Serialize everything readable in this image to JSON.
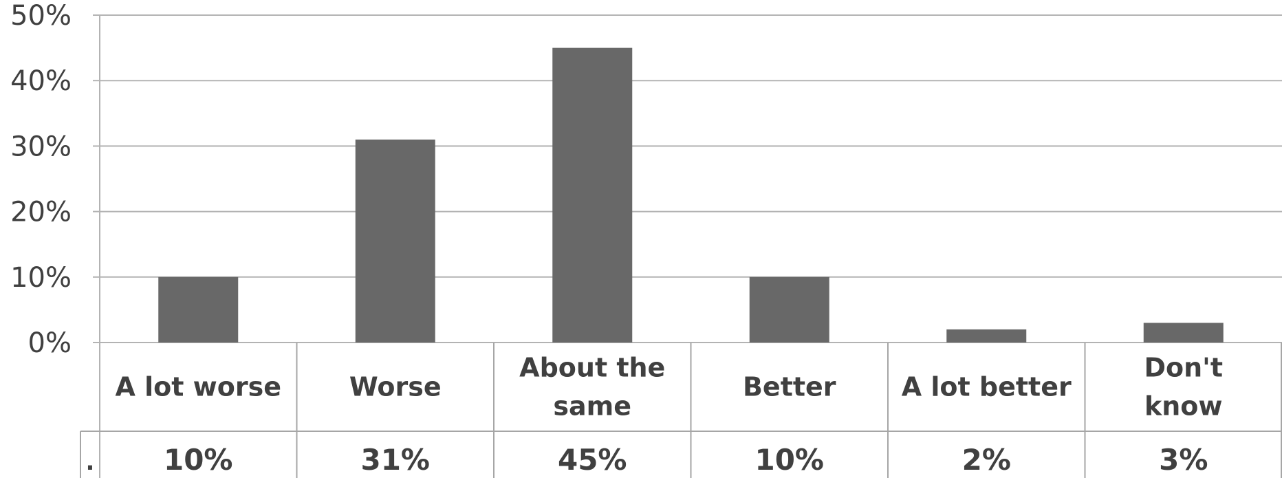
{
  "chart_data": {
    "type": "bar",
    "categories": [
      [
        "A lot worse"
      ],
      [
        "Worse"
      ],
      [
        "About the",
        "same"
      ],
      [
        "Better"
      ],
      [
        "A lot better"
      ],
      [
        "Don't",
        "know"
      ]
    ],
    "values": [
      10,
      31,
      45,
      10,
      2,
      3
    ],
    "value_labels": [
      "10%",
      "31%",
      "45%",
      "10%",
      "2%",
      "3%"
    ],
    "y_ticks": [
      "0%",
      "10%",
      "20%",
      "30%",
      "40%",
      "50%"
    ],
    "ylim": [
      0,
      50
    ],
    "data_table_row_key": ".",
    "grid": true,
    "colors": {
      "bar": "#686868",
      "grid": "#b3b3b3",
      "table_border": "#a6a6a6",
      "text": "#404040"
    }
  }
}
